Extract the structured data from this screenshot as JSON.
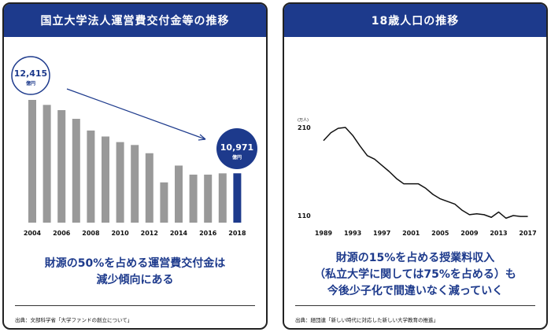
{
  "colors": {
    "accent": "#1d3a8c",
    "bar": "#999999"
  },
  "left": {
    "title": "国立大学法人運営費交付金等の推移",
    "message_line1": "財源の50%を占める運営費交付金は",
    "message_line2": "減少傾向にある",
    "source": "出典：文部科学省「大学ファンドの創立について」"
  },
  "right": {
    "title": "18歳人口の推移",
    "message_line1": "財源の15%を占める授業料収入",
    "message_line2": "（私立大学に関しては75%を占める）も",
    "message_line3": "今後少子化で間違いなく減っていく",
    "source": "出典：経団連「新しい時代に対応した新しい大学教育の推進」"
  },
  "chart_data": [
    {
      "type": "bar",
      "title": "国立大学法人運営費交付金等の推移",
      "unit": "億円",
      "categories": [
        "2004",
        "2005",
        "2006",
        "2007",
        "2008",
        "2009",
        "2010",
        "2011",
        "2012",
        "2013",
        "2014",
        "2015",
        "2016",
        "2017",
        "2018"
      ],
      "values": [
        12415,
        12317,
        12214,
        12043,
        11813,
        11695,
        11585,
        11528,
        11366,
        10792,
        11123,
        10945,
        10945,
        10970,
        10971
      ],
      "tick_labels": [
        "2004",
        "2006",
        "2008",
        "2010",
        "2012",
        "2014",
        "2016",
        "2018"
      ],
      "annotations": [
        {
          "value": "12,415",
          "unit": "億円"
        },
        {
          "value": "10,971",
          "unit": "億円"
        }
      ],
      "ylim": [
        10000,
        12600
      ]
    },
    {
      "type": "line",
      "title": "18歳人口の推移",
      "ylabel": "(万人)",
      "x": [
        1989,
        1990,
        1991,
        1992,
        1993,
        1994,
        1995,
        1996,
        1997,
        1998,
        1999,
        2000,
        2001,
        2002,
        2003,
        2004,
        2005,
        2006,
        2007,
        2008,
        2009,
        2010,
        2011,
        2012,
        2013,
        2014,
        2015,
        2016,
        2017
      ],
      "values": [
        195,
        204,
        209,
        210,
        201,
        189,
        178,
        174,
        167,
        160,
        152,
        146,
        146,
        146,
        141,
        134,
        129,
        126,
        123,
        116,
        111,
        112,
        111,
        108,
        114,
        107,
        110,
        109,
        109
      ],
      "y_ticks": [
        "110",
        "210"
      ],
      "yticks_values": [
        110,
        210
      ],
      "x_tick_labels": [
        "1989",
        "1993",
        "1997",
        "2001",
        "2005",
        "2009",
        "2013",
        "2017"
      ],
      "ylim": [
        110,
        210
      ]
    }
  ]
}
